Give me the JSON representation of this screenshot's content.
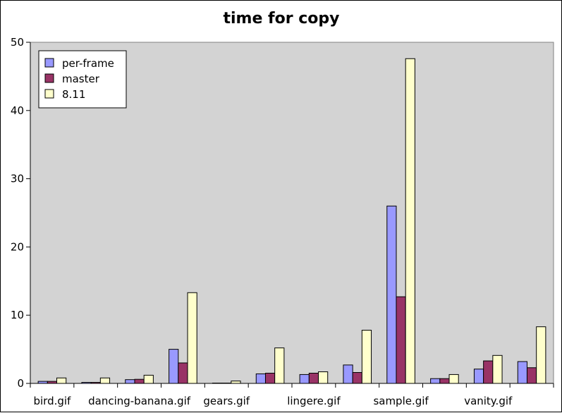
{
  "chart_data": {
    "type": "bar",
    "title": "time for copy",
    "xlabel": "",
    "ylabel": "",
    "ylim": [
      0,
      50
    ],
    "yticks": [
      0,
      10,
      20,
      30,
      40,
      50
    ],
    "grid": false,
    "legend_position": "top-left",
    "plot_background": "#d3d3d3",
    "categories": [
      "bird.gif",
      "",
      "dancing-banana.gif",
      "",
      "gears.gif",
      "",
      "lingere.gif",
      "",
      "sample.gif",
      "",
      "vanity.gif",
      ""
    ],
    "series": [
      {
        "name": "per-frame",
        "color": "#9999ff",
        "values": [
          0.3,
          0.15,
          0.55,
          5.0,
          0.05,
          1.4,
          1.3,
          2.7,
          26.0,
          0.7,
          2.1,
          3.2
        ]
      },
      {
        "name": "master",
        "color": "#993366",
        "values": [
          0.3,
          0.15,
          0.6,
          3.0,
          0.05,
          1.5,
          1.5,
          1.6,
          12.7,
          0.7,
          3.3,
          2.3
        ]
      },
      {
        "name": "8.11",
        "color": "#ffffcc",
        "values": [
          0.8,
          0.8,
          1.2,
          13.3,
          0.35,
          5.2,
          1.7,
          7.8,
          47.6,
          1.3,
          4.1,
          8.3
        ]
      }
    ]
  }
}
